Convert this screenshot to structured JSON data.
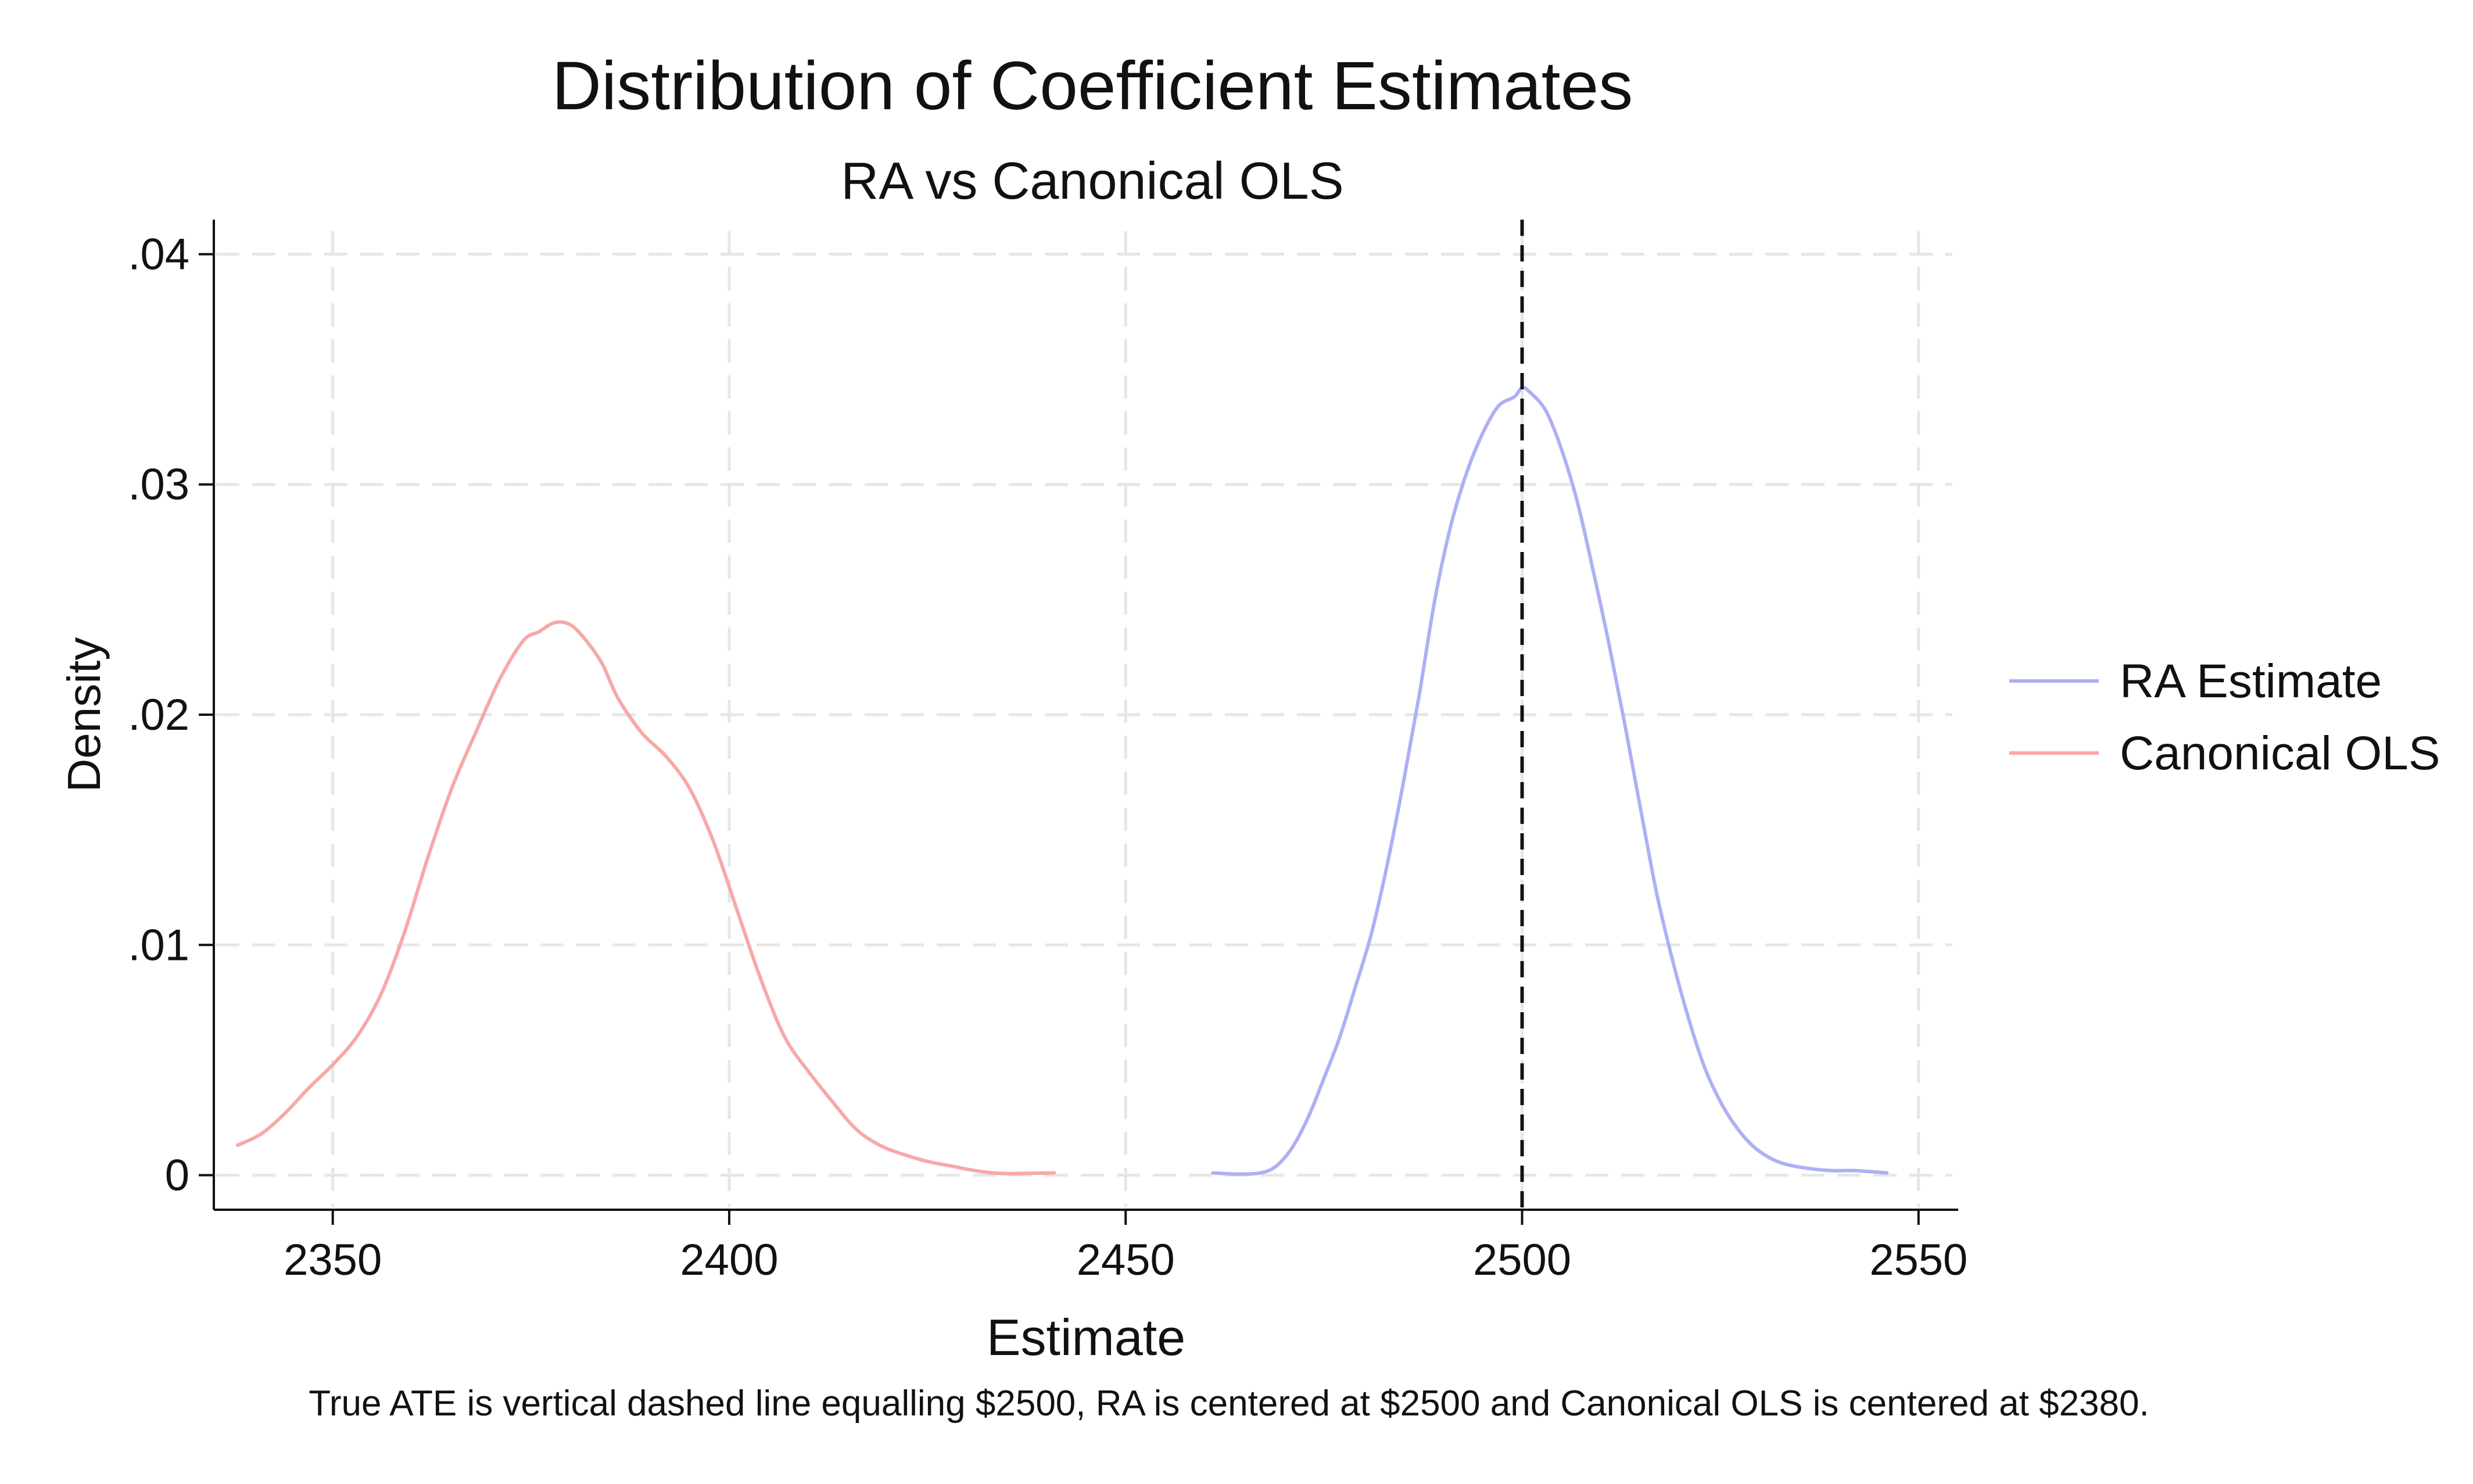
{
  "chart_data": {
    "type": "line",
    "title": "Distribution of Coefficient Estimates",
    "subtitle": "RA vs Canonical OLS",
    "xlabel": "Estimate",
    "ylabel": "Density",
    "note": "True ATE is vertical dashed line equalling $2500, RA is centered at $2500 and Canonical OLS is centered at $2380.",
    "xlim": [
      2335,
      2555
    ],
    "ylim": [
      -0.0015,
      0.0415
    ],
    "x_ticks": [
      2350,
      2400,
      2450,
      2500,
      2550
    ],
    "x_tick_labels": [
      "2350",
      "2400",
      "2450",
      "2500",
      "2550"
    ],
    "y_ticks": [
      0,
      0.01,
      0.02,
      0.03,
      0.04
    ],
    "y_tick_labels": [
      "0",
      ".01",
      ".02",
      ".03",
      ".04"
    ],
    "grid": true,
    "legend_position": "right",
    "reference_line": {
      "x": 2500,
      "style": "dashed",
      "color": "#111111"
    },
    "series": [
      {
        "name": "RA Estimate",
        "color": "#aeb0f5",
        "x": [
          2461,
          2464,
          2467,
          2469,
          2471,
          2473,
          2475,
          2477,
          2479,
          2481,
          2483,
          2485,
          2487,
          2489,
          2491,
          2493,
          2495,
          2497,
          2499,
          2500,
          2501,
          2503,
          2505,
          2507,
          2509,
          2511,
          2513,
          2515,
          2517,
          2519,
          2521,
          2523,
          2525,
          2527,
          2529,
          2531,
          2533,
          2536,
          2539,
          2542,
          2546
        ],
        "values": [
          0.0001,
          5e-05,
          0.0001,
          0.0004,
          0.0012,
          0.0025,
          0.0042,
          0.006,
          0.0082,
          0.0105,
          0.0135,
          0.017,
          0.0208,
          0.025,
          0.0282,
          0.0305,
          0.0322,
          0.0334,
          0.0338,
          0.0342,
          0.034,
          0.0332,
          0.0315,
          0.0292,
          0.0262,
          0.023,
          0.0195,
          0.0158,
          0.0122,
          0.0093,
          0.0068,
          0.0047,
          0.0032,
          0.0021,
          0.0013,
          0.0008,
          0.0005,
          0.0003,
          0.0002,
          0.0002,
          0.0001
        ]
      },
      {
        "name": "Canonical OLS",
        "color": "#f7a8a8",
        "x": [
          2338,
          2341,
          2344,
          2347,
          2350,
          2353,
          2356,
          2359,
          2362,
          2365,
          2368,
          2371,
          2374,
          2376,
          2378,
          2380,
          2382,
          2384,
          2386,
          2389,
          2392,
          2395,
          2398,
          2401,
          2404,
          2407,
          2410,
          2413,
          2416,
          2419,
          2422,
          2425,
          2428,
          2431,
          2434,
          2437,
          2441
        ],
        "values": [
          0.0013,
          0.0018,
          0.0027,
          0.0038,
          0.0048,
          0.006,
          0.0078,
          0.0105,
          0.0138,
          0.0168,
          0.0192,
          0.0215,
          0.0232,
          0.0236,
          0.024,
          0.0239,
          0.0232,
          0.0222,
          0.0207,
          0.0192,
          0.0182,
          0.0168,
          0.0145,
          0.0115,
          0.0085,
          0.006,
          0.0045,
          0.0032,
          0.002,
          0.0013,
          0.0009,
          0.0006,
          0.0004,
          0.0002,
          8e-05,
          8e-05,
          0.0001
        ]
      }
    ]
  }
}
